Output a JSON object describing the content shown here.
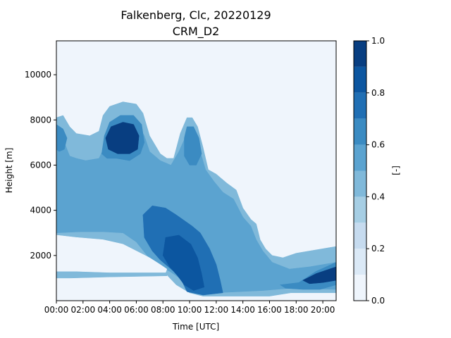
{
  "chart_data": {
    "type": "heatmap",
    "chart_kind": "filled contour",
    "title": "Falkenberg, Clc, 20220129",
    "subtitle": "CRM_D2",
    "xlabel": "Time [UTC]",
    "ylabel": "Height [m]",
    "x_unit": "hours UTC",
    "xlim": [
      0,
      21
    ],
    "ylim": [
      0,
      11500
    ],
    "x_ticks": [
      {
        "value": 0,
        "label": "00:00"
      },
      {
        "value": 2,
        "label": "02:00"
      },
      {
        "value": 4,
        "label": "04:00"
      },
      {
        "value": 6,
        "label": "06:00"
      },
      {
        "value": 8,
        "label": "08:00"
      },
      {
        "value": 10,
        "label": "10:00"
      },
      {
        "value": 12,
        "label": "12:00"
      },
      {
        "value": 14,
        "label": "14:00"
      },
      {
        "value": 16,
        "label": "16:00"
      },
      {
        "value": 18,
        "label": "18:00"
      },
      {
        "value": 20,
        "label": "20:00"
      }
    ],
    "y_ticks": [
      {
        "value": 2000,
        "label": "2000"
      },
      {
        "value": 4000,
        "label": "4000"
      },
      {
        "value": 6000,
        "label": "6000"
      },
      {
        "value": 8000,
        "label": "8000"
      },
      {
        "value": 10000,
        "label": "10000"
      }
    ],
    "colorbar": {
      "label": "[-]",
      "range": [
        0,
        1
      ],
      "levels": [
        0,
        0.1,
        0.2,
        0.3,
        0.4,
        0.5,
        0.6,
        0.7,
        0.8,
        0.9,
        1.0
      ],
      "colors": [
        "#eff5fc",
        "#dbe9f6",
        "#c6dbef",
        "#a6cee4",
        "#80b9da",
        "#5ba3d0",
        "#3b8bc2",
        "#206fb4",
        "#0c56a0",
        "#083e81"
      ],
      "ticks": [
        {
          "value": 0,
          "label": "0.0"
        },
        {
          "value": 0.2,
          "label": "0.2"
        },
        {
          "value": 0.4,
          "label": "0.4"
        },
        {
          "value": 0.6,
          "label": "0.6"
        },
        {
          "value": 0.8,
          "label": "0.8"
        },
        {
          "value": 1.0,
          "label": "1.0"
        }
      ]
    },
    "regions": [
      {
        "name": "main-cloud-layer",
        "level": 0.45,
        "polygon": [
          [
            0,
            8100
          ],
          [
            0.5,
            8200
          ],
          [
            1,
            7700
          ],
          [
            1.5,
            7400
          ],
          [
            2.5,
            7300
          ],
          [
            3.2,
            7500
          ],
          [
            3.5,
            8200
          ],
          [
            4,
            8600
          ],
          [
            5,
            8800
          ],
          [
            6,
            8700
          ],
          [
            6.5,
            8300
          ],
          [
            7,
            7300
          ],
          [
            7.8,
            6500
          ],
          [
            8.3,
            6300
          ],
          [
            8.8,
            6300
          ],
          [
            9.3,
            7400
          ],
          [
            9.8,
            8100
          ],
          [
            10.2,
            8100
          ],
          [
            10.6,
            7700
          ],
          [
            11,
            6800
          ],
          [
            11.4,
            5800
          ],
          [
            12,
            5600
          ],
          [
            12.8,
            5200
          ],
          [
            13.5,
            4900
          ],
          [
            14,
            4100
          ],
          [
            14.6,
            3600
          ],
          [
            15,
            3400
          ],
          [
            15.3,
            2700
          ],
          [
            15.7,
            2300
          ],
          [
            16.2,
            2000
          ],
          [
            17,
            1900
          ],
          [
            18,
            2100
          ],
          [
            19,
            2200
          ],
          [
            21,
            2400
          ],
          [
            21,
            350
          ],
          [
            17.6,
            350
          ],
          [
            16,
            200
          ],
          [
            11,
            200
          ],
          [
            10,
            350
          ],
          [
            9,
            700
          ],
          [
            8.2,
            1200
          ],
          [
            7,
            1250
          ],
          [
            4,
            1200
          ],
          [
            1,
            1200
          ],
          [
            0,
            1200
          ],
          [
            0,
            2900
          ],
          [
            1,
            3100
          ],
          [
            3,
            3150
          ],
          [
            4.5,
            3100
          ],
          [
            6,
            2700
          ],
          [
            7,
            2300
          ],
          [
            7.8,
            1800
          ],
          [
            8.4,
            1500
          ],
          [
            8.3,
            1100
          ],
          [
            4,
            1050
          ],
          [
            1,
            1000
          ],
          [
            0,
            1000
          ]
        ]
      },
      {
        "name": "mid-cloud-body",
        "level": 0.55,
        "polygon": [
          [
            0,
            7200
          ],
          [
            0.6,
            7000
          ],
          [
            1,
            6400
          ],
          [
            1.5,
            6300
          ],
          [
            2.2,
            6200
          ],
          [
            3.2,
            6300
          ],
          [
            3.6,
            6800
          ],
          [
            4,
            7500
          ],
          [
            4.8,
            7900
          ],
          [
            6,
            7900
          ],
          [
            6.6,
            7300
          ],
          [
            7,
            6600
          ],
          [
            7.8,
            6200
          ],
          [
            8.6,
            6000
          ],
          [
            9.2,
            6600
          ],
          [
            9.8,
            7400
          ],
          [
            10.4,
            7300
          ],
          [
            10.8,
            6600
          ],
          [
            11.2,
            5800
          ],
          [
            11.8,
            5300
          ],
          [
            12.5,
            4800
          ],
          [
            13.3,
            4500
          ],
          [
            14,
            3700
          ],
          [
            14.6,
            3300
          ],
          [
            15,
            2700
          ],
          [
            15.5,
            2200
          ],
          [
            16.2,
            1700
          ],
          [
            17.5,
            1400
          ],
          [
            19,
            1500
          ],
          [
            21,
            1700
          ],
          [
            21,
            500
          ],
          [
            17.5,
            550
          ],
          [
            15.5,
            450
          ],
          [
            12,
            350
          ],
          [
            10.5,
            500
          ],
          [
            9.5,
            900
          ],
          [
            8.5,
            1300
          ],
          [
            7.5,
            1600
          ],
          [
            6.8,
            2000
          ],
          [
            6,
            2600
          ],
          [
            5,
            3000
          ],
          [
            3.5,
            3050
          ],
          [
            1.8,
            3050
          ],
          [
            0,
            3000
          ]
        ]
      },
      {
        "name": "core-tower",
        "level": 0.65,
        "polygon": [
          [
            3.4,
            6500
          ],
          [
            3.6,
            7300
          ],
          [
            4,
            7900
          ],
          [
            4.8,
            8200
          ],
          [
            5.8,
            8200
          ],
          [
            6.4,
            7800
          ],
          [
            6.6,
            7000
          ],
          [
            6.3,
            6500
          ],
          [
            5.5,
            6200
          ],
          [
            4.5,
            6300
          ],
          [
            3.8,
            6300
          ]
        ]
      },
      {
        "name": "right-tower",
        "level": 0.65,
        "polygon": [
          [
            9.6,
            7200
          ],
          [
            9.8,
            7700
          ],
          [
            10.3,
            7700
          ],
          [
            10.7,
            7200
          ],
          [
            10.9,
            6500
          ],
          [
            10.5,
            6000
          ],
          [
            10,
            6000
          ],
          [
            9.6,
            6400
          ]
        ]
      },
      {
        "name": "left-cell",
        "level": 0.65,
        "polygon": [
          [
            0,
            7800
          ],
          [
            0.5,
            7600
          ],
          [
            0.8,
            7200
          ],
          [
            0.6,
            6700
          ],
          [
            0.2,
            6600
          ],
          [
            0,
            6700
          ]
        ]
      },
      {
        "name": "lower-column",
        "level": 0.75,
        "polygon": [
          [
            6.5,
            3800
          ],
          [
            7.2,
            4200
          ],
          [
            8.2,
            4100
          ],
          [
            9,
            3800
          ],
          [
            10.2,
            3300
          ],
          [
            10.8,
            3000
          ],
          [
            11.5,
            2300
          ],
          [
            12,
            1600
          ],
          [
            12.3,
            900
          ],
          [
            12.5,
            350
          ],
          [
            11,
            250
          ],
          [
            9.8,
            400
          ],
          [
            9.4,
            900
          ],
          [
            8.8,
            1300
          ],
          [
            7.8,
            1800
          ],
          [
            7.2,
            2200
          ],
          [
            6.6,
            2800
          ]
        ]
      },
      {
        "name": "low-cell-east",
        "level": 0.65,
        "polygon": [
          [
            16.8,
            700
          ],
          [
            18.2,
            800
          ],
          [
            19.5,
            1300
          ],
          [
            21,
            1700
          ],
          [
            21,
            700
          ],
          [
            19.8,
            500
          ],
          [
            18.5,
            500
          ],
          [
            17.2,
            550
          ]
        ]
      },
      {
        "name": "dark-core-high",
        "level": 0.95,
        "polygon": [
          [
            3.7,
            7200
          ],
          [
            4.1,
            7700
          ],
          [
            5,
            7900
          ],
          [
            5.8,
            7800
          ],
          [
            6.2,
            7300
          ],
          [
            6.1,
            6700
          ],
          [
            5.5,
            6500
          ],
          [
            4.6,
            6500
          ],
          [
            3.9,
            6700
          ]
        ]
      },
      {
        "name": "dark-core-low",
        "level": 0.85,
        "polygon": [
          [
            8.2,
            2800
          ],
          [
            9.2,
            2900
          ],
          [
            10.1,
            2500
          ],
          [
            10.6,
            1900
          ],
          [
            10.9,
            1200
          ],
          [
            11.1,
            600
          ],
          [
            10.3,
            450
          ],
          [
            9.6,
            700
          ],
          [
            9.1,
            1100
          ],
          [
            8.5,
            1500
          ],
          [
            8,
            2000
          ]
        ]
      },
      {
        "name": "dark-core-east",
        "level": 0.95,
        "polygon": [
          [
            18.5,
            900
          ],
          [
            19.5,
            1200
          ],
          [
            21,
            1500
          ],
          [
            21,
            900
          ],
          [
            20,
            800
          ],
          [
            19,
            750
          ]
        ]
      },
      {
        "name": "clear-gap",
        "level": 0.05,
        "polygon": [
          [
            0,
            2900
          ],
          [
            1.5,
            2800
          ],
          [
            3.5,
            2700
          ],
          [
            5,
            2500
          ],
          [
            6,
            2200
          ],
          [
            7,
            1900
          ],
          [
            7.8,
            1600
          ],
          [
            8.3,
            1400
          ],
          [
            8.2,
            1250
          ],
          [
            6.5,
            1250
          ],
          [
            4,
            1250
          ],
          [
            1.5,
            1300
          ],
          [
            0,
            1300
          ]
        ]
      }
    ]
  }
}
